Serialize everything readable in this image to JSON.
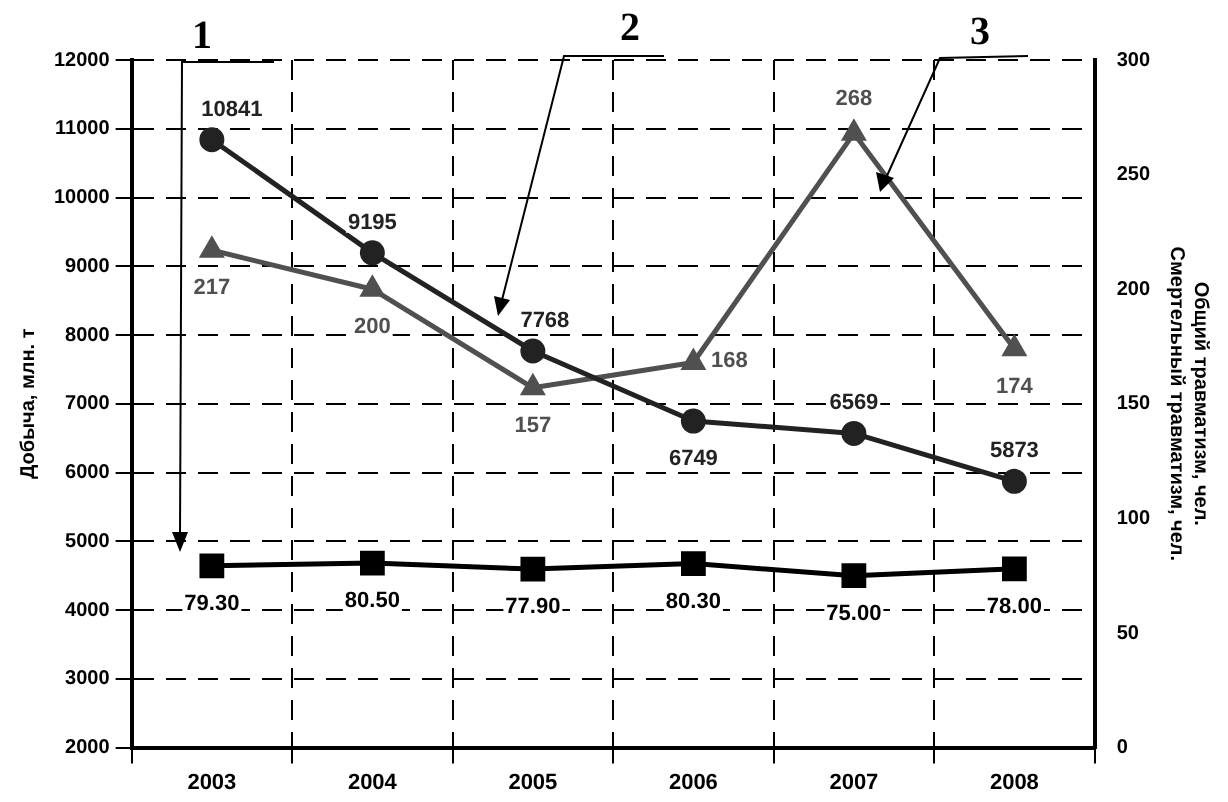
{
  "chart_data": {
    "type": "line",
    "categories": [
      "2003",
      "2004",
      "2005",
      "2006",
      "2007",
      "2008"
    ],
    "ylabel": "Добыча, млн. т",
    "y2label": "Общий травматизм, чел.\nСмертельный травматизм, чел.",
    "ylim": [
      2000,
      12000
    ],
    "yticks": [
      2000,
      3000,
      4000,
      5000,
      6000,
      7000,
      8000,
      9000,
      10000,
      11000,
      12000
    ],
    "y2lim": [
      0,
      300
    ],
    "y2ticks": [
      0,
      50,
      100,
      150,
      200,
      250,
      300
    ],
    "grid": true,
    "line_style": "solid",
    "legend": false,
    "annotations": [
      "1",
      "2",
      "3"
    ],
    "series": [
      {
        "marker": "square",
        "color": "#000000",
        "axis": "y2",
        "values": [
          79.3,
          80.5,
          77.9,
          80.3,
          75.0,
          78.0
        ],
        "value_labels": [
          "79.30",
          "80.50",
          "77.90",
          "80.30",
          "75.00",
          "78.00"
        ]
      },
      {
        "marker": "circle",
        "color": "#222222",
        "values": [
          10841,
          9195,
          7768,
          6749,
          6569,
          5873
        ],
        "value_labels": [
          "10841",
          "9195",
          "7768",
          "6749",
          "6569",
          "5873"
        ]
      },
      {
        "marker": "triangle",
        "color": "#505050",
        "axis": "y2",
        "values": [
          217,
          200,
          157,
          168,
          268,
          174
        ],
        "value_labels": [
          "217",
          "200",
          "157",
          "168",
          "268",
          "174"
        ]
      }
    ]
  }
}
